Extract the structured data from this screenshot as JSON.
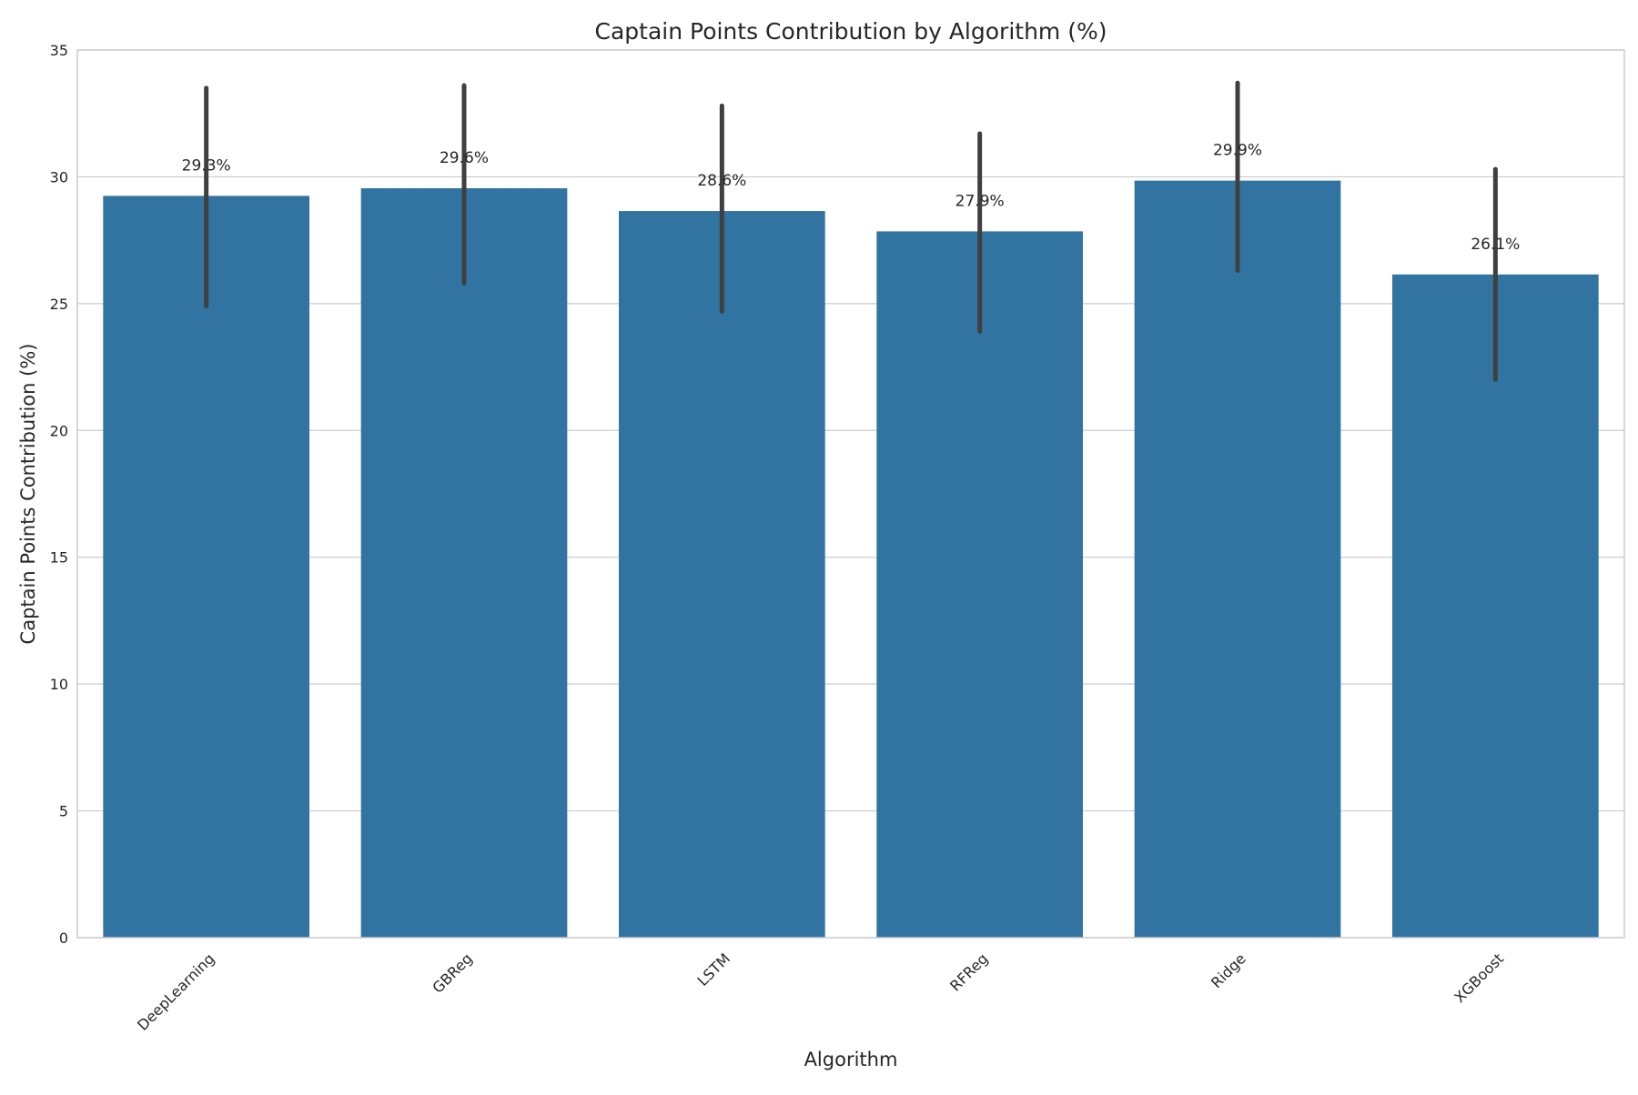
{
  "chart_data": {
    "type": "bar",
    "title": "Captain Points Contribution by Algorithm (%)",
    "xlabel": "Algorithm",
    "ylabel": "Captain Points Contribution (%)",
    "categories": [
      "DeepLearning",
      "GBReg",
      "LSTM",
      "RFReg",
      "Ridge",
      "XGBoost"
    ],
    "values": [
      29.25,
      29.55,
      28.65,
      27.85,
      29.85,
      26.15
    ],
    "error_low": [
      24.9,
      25.8,
      24.7,
      23.9,
      26.3,
      22.0
    ],
    "error_high": [
      33.5,
      33.6,
      32.8,
      31.7,
      33.7,
      30.3
    ],
    "data_labels": [
      "29.3%",
      "29.6%",
      "28.6%",
      "27.9%",
      "29.9%",
      "26.1%"
    ],
    "ylim": [
      0,
      35
    ],
    "yticks": [
      0,
      5,
      10,
      15,
      20,
      25,
      30,
      35
    ],
    "grid": "horizontal",
    "bar_color": "#3274a1",
    "error_color": "#3f3f3f"
  }
}
